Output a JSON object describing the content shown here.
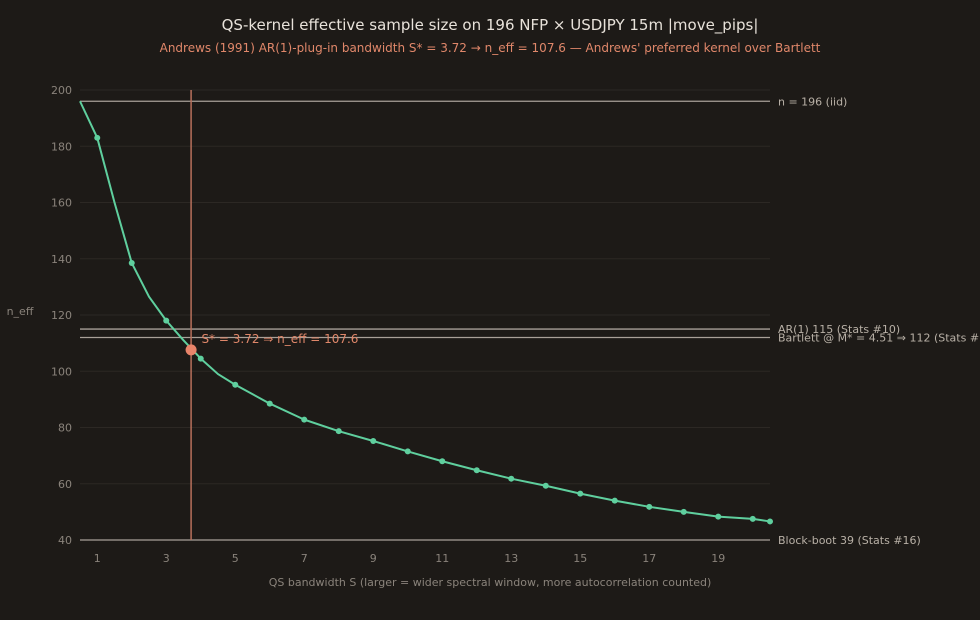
{
  "chart_data": {
    "type": "line",
    "title": "QS-kernel effective sample size on 196 NFP × USDJPY 15m |move_pips|",
    "subtitle": "Andrews (1991) AR(1)-plug-in bandwidth S* = 3.72 → n_eff = 107.6 — Andrews' preferred kernel over Bartlett",
    "xlabel": "QS bandwidth S (larger = wider spectral window, more autocorrelation counted)",
    "ylabel": "n_eff",
    "xlim": [
      0.5,
      20.5
    ],
    "ylim": [
      40,
      200
    ],
    "x_ticks": [
      1,
      3,
      5,
      7,
      9,
      11,
      13,
      15,
      17,
      19
    ],
    "y_ticks": [
      40,
      60,
      80,
      100,
      120,
      140,
      160,
      180,
      200
    ],
    "grid": "horizontal",
    "series": [
      {
        "color": "#5fcf9e",
        "x": [
          0.5,
          1,
          1.5,
          2,
          2.5,
          3,
          3.5,
          4,
          4.5,
          5,
          6,
          7,
          8,
          9,
          10,
          11,
          12,
          13,
          14,
          15,
          16,
          17,
          18,
          19,
          20,
          20.5
        ],
        "y": [
          196,
          183,
          160,
          138.5,
          126.5,
          118,
          111,
          104.5,
          99,
          95.2,
          88.5,
          82.8,
          78.7,
          75.2,
          71.5,
          68,
          64.8,
          61.8,
          59.3,
          56.5,
          54,
          51.8,
          50,
          48.3,
          47.5,
          46.6
        ],
        "markers_x": [
          1,
          2,
          3,
          4,
          5,
          6,
          7,
          8,
          9,
          10,
          11,
          12,
          13,
          14,
          15,
          16,
          17,
          18,
          19,
          20,
          20.5
        ],
        "markers_y": [
          183,
          138.5,
          118,
          104.5,
          95.2,
          88.5,
          82.8,
          78.7,
          75.2,
          71.5,
          68,
          64.8,
          61.8,
          59.3,
          56.5,
          54,
          51.8,
          50,
          48.3,
          47.5,
          46.6
        ]
      }
    ],
    "reference_lines": [
      {
        "y": 196,
        "label": "n = 196 (iid)",
        "color": "#a8a098"
      },
      {
        "y": 115,
        "label": "AR(1) 115 (Stats #10)",
        "color": "#a8a098"
      },
      {
        "y": 112,
        "label": "Bartlett @ M* = 4.51 ⇒ 112 (Stats #",
        "color": "#a8a098"
      },
      {
        "y": 40,
        "label": "Block-boot 39 (Stats #16)",
        "color": "#a8a098"
      }
    ],
    "vline": {
      "x": 3.72,
      "color": "#b8705c"
    },
    "highlight_point": {
      "x": 3.72,
      "y": 107.6,
      "color": "#e8846a"
    },
    "annotation": {
      "text": "S* = 3.72 ⇒ n_eff = 107.6",
      "x": 4.02,
      "y": 111.5
    }
  }
}
